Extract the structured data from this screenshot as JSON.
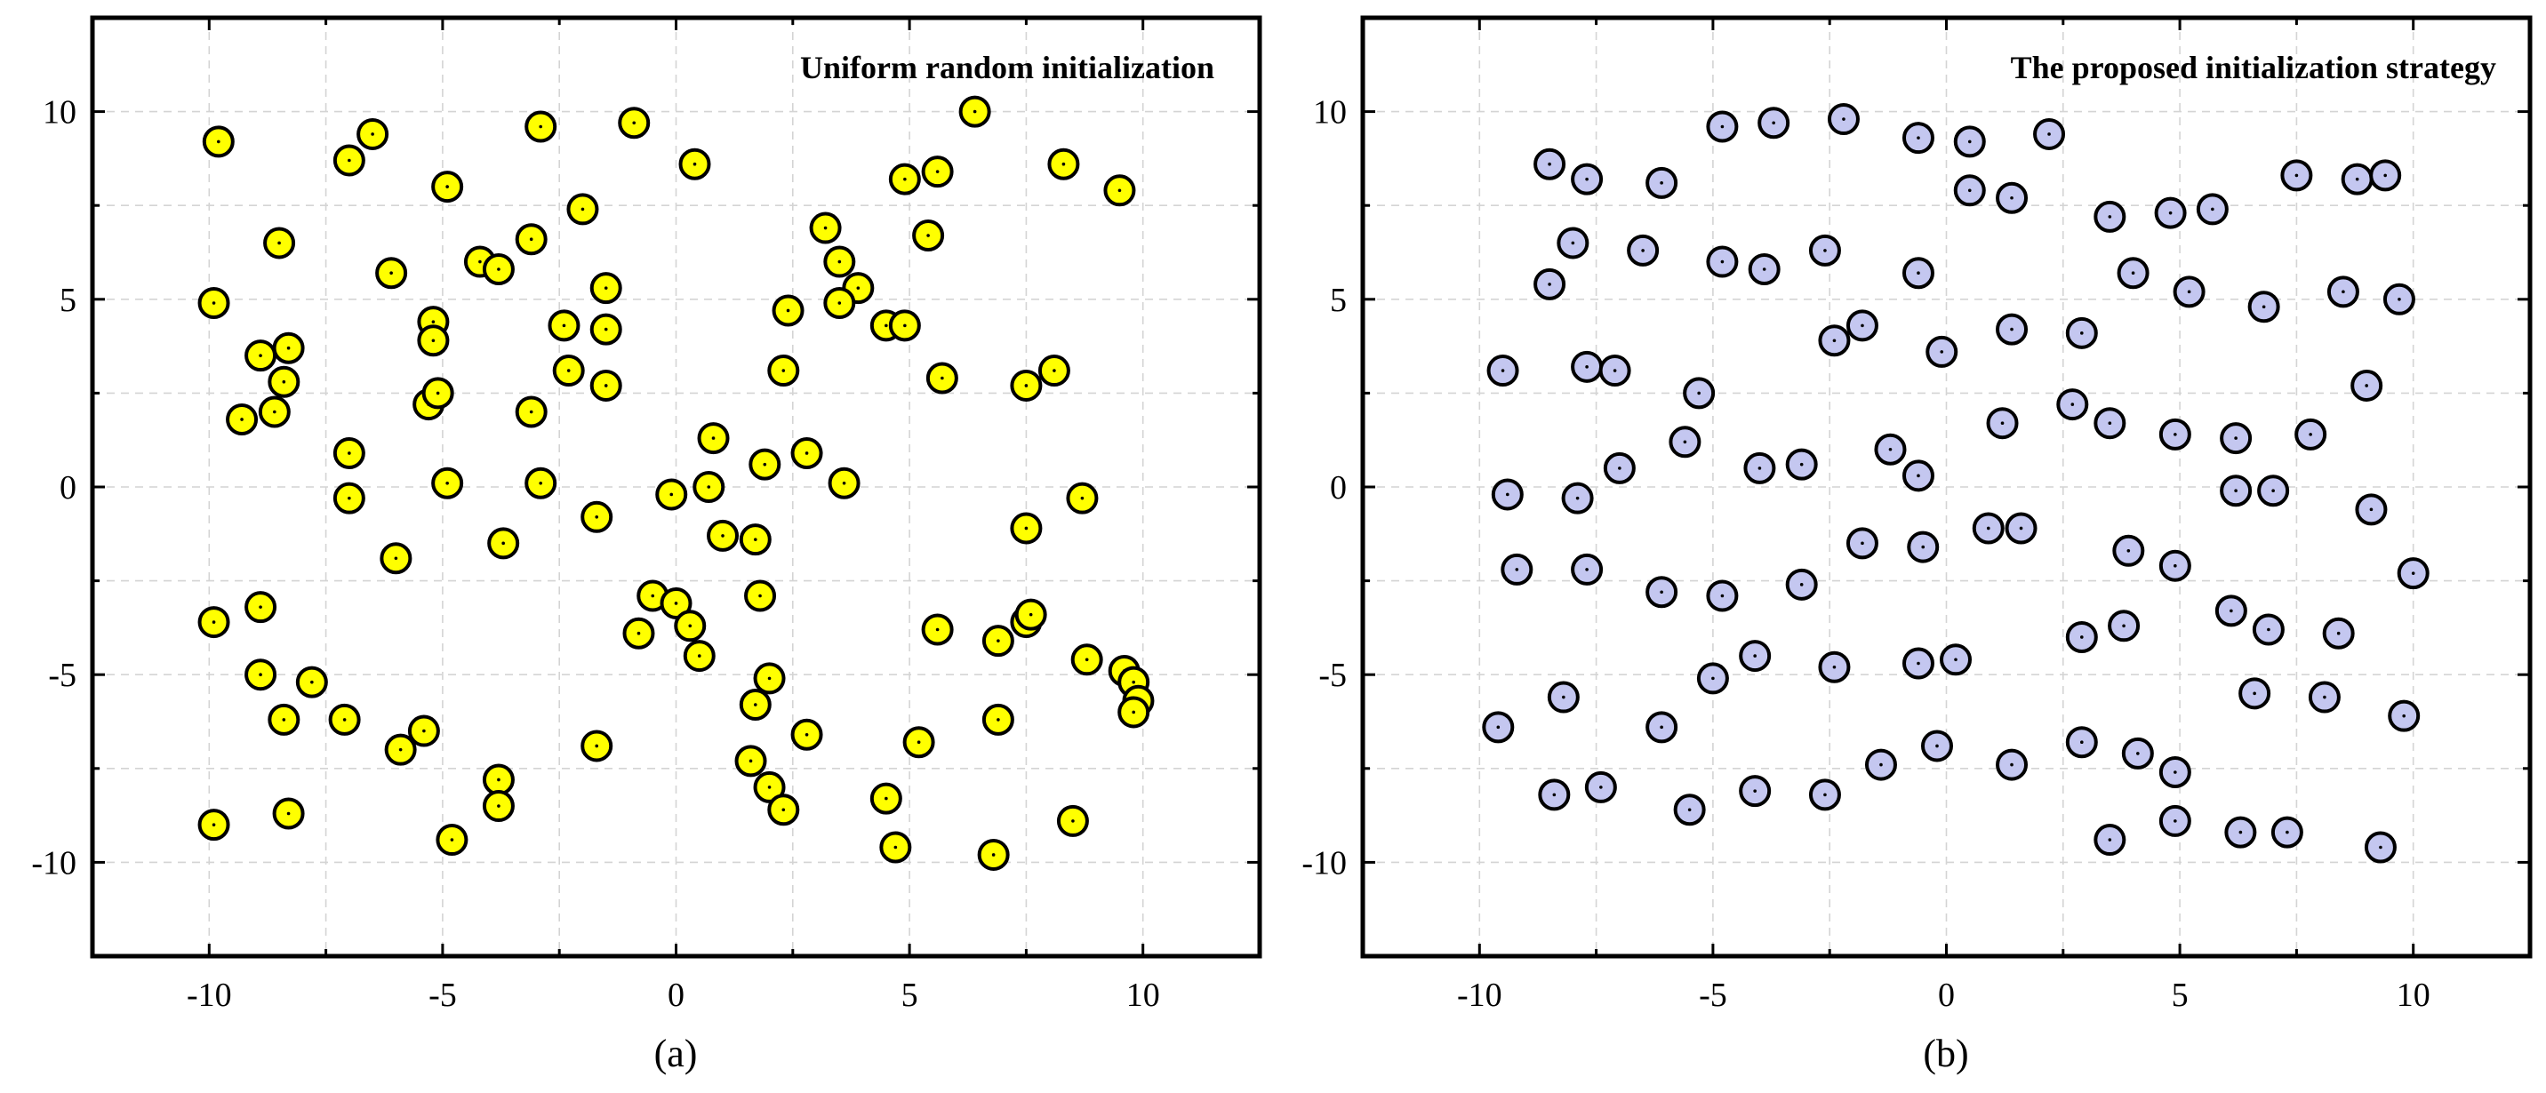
{
  "chart_data": [
    {
      "type": "scatter",
      "title": "Uniform random initialization",
      "caption": "(a)",
      "xlabel": "",
      "ylabel": "",
      "xlim": [
        -12.5,
        12.5
      ],
      "ylim": [
        -12.5,
        12.5
      ],
      "xticks": [
        -10,
        -5,
        0,
        5,
        10
      ],
      "yticks": [
        -10,
        -5,
        0,
        5,
        10
      ],
      "xtick_labels": [
        "-10",
        "-5",
        "0",
        "5",
        "10"
      ],
      "ytick_labels": [
        "-10",
        "-5",
        "0",
        "5",
        "10"
      ],
      "minor_ticks": [
        -12.5,
        -7.5,
        -2.5,
        2.5,
        7.5,
        12.5
      ],
      "grid": true,
      "marker_color": "#ffff00",
      "points": [
        [
          -9.8,
          9.2
        ],
        [
          -6.5,
          9.4
        ],
        [
          -7.0,
          8.7
        ],
        [
          -4.9,
          8.0
        ],
        [
          -2.9,
          9.6
        ],
        [
          -0.9,
          9.7
        ],
        [
          0.4,
          8.6
        ],
        [
          6.4,
          10.0
        ],
        [
          4.9,
          8.2
        ],
        [
          5.6,
          8.4
        ],
        [
          8.3,
          8.6
        ],
        [
          9.5,
          7.9
        ],
        [
          -9.9,
          4.9
        ],
        [
          -8.5,
          6.5
        ],
        [
          -6.1,
          5.7
        ],
        [
          -4.2,
          6.0
        ],
        [
          -3.8,
          5.8
        ],
        [
          -3.1,
          6.6
        ],
        [
          -2.0,
          7.4
        ],
        [
          -1.5,
          5.3
        ],
        [
          3.2,
          6.9
        ],
        [
          3.5,
          6.0
        ],
        [
          3.9,
          5.3
        ],
        [
          5.4,
          6.7
        ],
        [
          -8.9,
          3.5
        ],
        [
          -8.3,
          3.7
        ],
        [
          -8.4,
          2.8
        ],
        [
          -9.3,
          1.8
        ],
        [
          -8.6,
          2.0
        ],
        [
          -5.2,
          4.4
        ],
        [
          -5.2,
          3.9
        ],
        [
          -5.3,
          2.2
        ],
        [
          -5.1,
          2.5
        ],
        [
          -2.4,
          4.3
        ],
        [
          -1.5,
          4.2
        ],
        [
          -2.3,
          3.1
        ],
        [
          -1.5,
          2.7
        ],
        [
          -3.1,
          2.0
        ],
        [
          2.4,
          4.7
        ],
        [
          3.5,
          4.9
        ],
        [
          4.5,
          4.3
        ],
        [
          4.9,
          4.3
        ],
        [
          2.3,
          3.1
        ],
        [
          5.7,
          2.9
        ],
        [
          7.5,
          2.7
        ],
        [
          8.1,
          3.1
        ],
        [
          -7.0,
          0.9
        ],
        [
          -7.0,
          -0.3
        ],
        [
          -4.9,
          0.1
        ],
        [
          -2.9,
          0.1
        ],
        [
          -6.0,
          -1.9
        ],
        [
          -3.7,
          -1.5
        ],
        [
          -1.7,
          -0.8
        ],
        [
          -0.1,
          -0.2
        ],
        [
          0.7,
          0.0
        ],
        [
          0.8,
          1.3
        ],
        [
          1.9,
          0.6
        ],
        [
          2.8,
          0.9
        ],
        [
          3.6,
          0.1
        ],
        [
          1.0,
          -1.3
        ],
        [
          1.7,
          -1.4
        ],
        [
          7.5,
          -1.1
        ],
        [
          8.7,
          -0.3
        ],
        [
          -9.9,
          -3.6
        ],
        [
          -8.9,
          -3.2
        ],
        [
          -8.9,
          -5.0
        ],
        [
          -7.8,
          -5.2
        ],
        [
          -8.4,
          -6.2
        ],
        [
          -7.1,
          -6.2
        ],
        [
          -5.9,
          -7.0
        ],
        [
          -5.4,
          -6.5
        ],
        [
          -8.3,
          -8.7
        ],
        [
          -9.9,
          -9.0
        ],
        [
          -4.8,
          -9.4
        ],
        [
          -3.8,
          -7.8
        ],
        [
          -3.8,
          -8.5
        ],
        [
          -1.7,
          -6.9
        ],
        [
          -0.8,
          -3.9
        ],
        [
          -0.5,
          -2.9
        ],
        [
          0.0,
          -3.1
        ],
        [
          0.3,
          -3.7
        ],
        [
          0.5,
          -4.5
        ],
        [
          1.8,
          -2.9
        ],
        [
          2.0,
          -5.1
        ],
        [
          1.7,
          -5.8
        ],
        [
          1.6,
          -7.3
        ],
        [
          2.0,
          -8.0
        ],
        [
          2.3,
          -8.6
        ],
        [
          2.8,
          -6.6
        ],
        [
          4.5,
          -8.3
        ],
        [
          4.7,
          -9.6
        ],
        [
          5.2,
          -6.8
        ],
        [
          5.6,
          -3.8
        ],
        [
          6.9,
          -4.1
        ],
        [
          7.5,
          -3.6
        ],
        [
          7.6,
          -3.4
        ],
        [
          6.9,
          -6.2
        ],
        [
          6.8,
          -9.8
        ],
        [
          8.5,
          -8.9
        ],
        [
          8.8,
          -4.6
        ],
        [
          9.6,
          -4.9
        ],
        [
          9.8,
          -5.2
        ],
        [
          9.9,
          -5.7
        ],
        [
          9.8,
          -6.0
        ]
      ]
    },
    {
      "type": "scatter",
      "title": "The proposed initialization strategy",
      "caption": "(b)",
      "xlabel": "",
      "ylabel": "",
      "xlim": [
        -12.5,
        12.5
      ],
      "ylim": [
        -12.5,
        12.5
      ],
      "xticks": [
        -10,
        -5,
        0,
        5,
        10
      ],
      "yticks": [
        -10,
        -5,
        0,
        5,
        10
      ],
      "xtick_labels": [
        "-10",
        "-5",
        "0",
        "5",
        "10"
      ],
      "ytick_labels": [
        "-10",
        "-5",
        "0",
        "5",
        "10"
      ],
      "minor_ticks": [
        -12.5,
        -7.5,
        -2.5,
        2.5,
        7.5,
        12.5
      ],
      "grid": true,
      "marker_color": "#c4c7f0",
      "points": [
        [
          -8.5,
          8.6
        ],
        [
          -7.7,
          8.2
        ],
        [
          -6.1,
          8.1
        ],
        [
          -4.8,
          9.6
        ],
        [
          -3.7,
          9.7
        ],
        [
          -2.2,
          9.8
        ],
        [
          -0.6,
          9.3
        ],
        [
          0.5,
          9.2
        ],
        [
          2.2,
          9.4
        ],
        [
          0.5,
          7.9
        ],
        [
          1.4,
          7.7
        ],
        [
          3.5,
          7.2
        ],
        [
          4.8,
          7.3
        ],
        [
          5.7,
          7.4
        ],
        [
          7.5,
          8.3
        ],
        [
          8.8,
          8.2
        ],
        [
          9.4,
          8.3
        ],
        [
          -8.0,
          6.5
        ],
        [
          -8.5,
          5.4
        ],
        [
          -6.5,
          6.3
        ],
        [
          -4.8,
          6.0
        ],
        [
          -3.9,
          5.8
        ],
        [
          -2.6,
          6.3
        ],
        [
          -0.6,
          5.7
        ],
        [
          4.0,
          5.7
        ],
        [
          5.2,
          5.2
        ],
        [
          6.8,
          4.8
        ],
        [
          8.5,
          5.2
        ],
        [
          9.7,
          5.0
        ],
        [
          -9.5,
          3.1
        ],
        [
          -7.7,
          3.2
        ],
        [
          -7.1,
          3.1
        ],
        [
          -5.3,
          2.5
        ],
        [
          -2.4,
          3.9
        ],
        [
          -1.8,
          4.3
        ],
        [
          -0.1,
          3.6
        ],
        [
          1.4,
          4.2
        ],
        [
          2.9,
          4.1
        ],
        [
          1.2,
          1.7
        ],
        [
          2.7,
          2.2
        ],
        [
          3.5,
          1.7
        ],
        [
          4.9,
          1.4
        ],
        [
          6.2,
          1.3
        ],
        [
          7.8,
          1.4
        ],
        [
          9.0,
          2.7
        ],
        [
          -9.4,
          -0.2
        ],
        [
          -7.9,
          -0.3
        ],
        [
          -7.0,
          0.5
        ],
        [
          -5.6,
          1.2
        ],
        [
          -4.0,
          0.5
        ],
        [
          -3.1,
          0.6
        ],
        [
          -1.2,
          1.0
        ],
        [
          -0.6,
          0.3
        ],
        [
          -9.2,
          -2.2
        ],
        [
          -7.7,
          -2.2
        ],
        [
          -6.1,
          -2.8
        ],
        [
          -4.8,
          -2.9
        ],
        [
          -3.1,
          -2.6
        ],
        [
          -1.8,
          -1.5
        ],
        [
          -0.5,
          -1.6
        ],
        [
          0.9,
          -1.1
        ],
        [
          1.6,
          -1.1
        ],
        [
          3.9,
          -1.7
        ],
        [
          4.9,
          -2.1
        ],
        [
          6.2,
          -0.1
        ],
        [
          7.0,
          -0.1
        ],
        [
          9.1,
          -0.6
        ],
        [
          10.0,
          -2.3
        ],
        [
          2.9,
          -4.0
        ],
        [
          3.8,
          -3.7
        ],
        [
          6.1,
          -3.3
        ],
        [
          6.9,
          -3.8
        ],
        [
          8.4,
          -3.9
        ],
        [
          -9.6,
          -6.4
        ],
        [
          -8.2,
          -5.6
        ],
        [
          -6.1,
          -6.4
        ],
        [
          -5.0,
          -5.1
        ],
        [
          -4.1,
          -4.5
        ],
        [
          -2.4,
          -4.8
        ],
        [
          -0.6,
          -4.7
        ],
        [
          0.2,
          -4.6
        ],
        [
          -8.4,
          -8.2
        ],
        [
          -7.4,
          -8.0
        ],
        [
          -5.5,
          -8.6
        ],
        [
          -4.1,
          -8.1
        ],
        [
          -2.6,
          -8.2
        ],
        [
          -1.4,
          -7.4
        ],
        [
          -0.2,
          -6.9
        ],
        [
          1.4,
          -7.4
        ],
        [
          2.9,
          -6.8
        ],
        [
          4.1,
          -7.1
        ],
        [
          4.9,
          -7.6
        ],
        [
          6.6,
          -5.5
        ],
        [
          8.1,
          -5.6
        ],
        [
          9.8,
          -6.1
        ],
        [
          3.5,
          -9.4
        ],
        [
          4.9,
          -8.9
        ],
        [
          6.3,
          -9.2
        ],
        [
          7.3,
          -9.2
        ],
        [
          9.3,
          -9.6
        ]
      ]
    }
  ]
}
